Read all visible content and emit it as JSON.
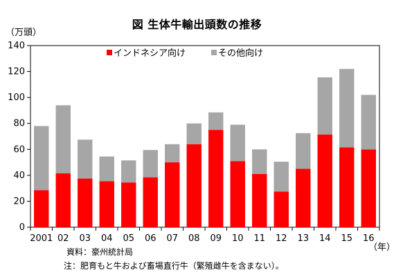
{
  "chart_data": {
    "type": "bar",
    "stacked": true,
    "title": "図 生体牛輸出頭数の推移",
    "y_unit_label": "（万頭）",
    "x_unit_label": "（年）",
    "categories": [
      "2001",
      "02",
      "03",
      "04",
      "05",
      "06",
      "07",
      "08",
      "09",
      "10",
      "11",
      "12",
      "13",
      "14",
      "15",
      "16"
    ],
    "series": [
      {
        "name": "インドネシア向け",
        "color": "#ff0000",
        "values": [
          28.5,
          41.5,
          37.5,
          35.5,
          34.5,
          38.5,
          50,
          64,
          75,
          51,
          41,
          27.5,
          45,
          71.5,
          61.5,
          60
        ]
      },
      {
        "name": "その他向け",
        "color": "#a6a6a6",
        "values": [
          49.5,
          52.5,
          30,
          19,
          17,
          21,
          14,
          16,
          13.5,
          28,
          19,
          23,
          27.5,
          44,
          60.5,
          42
        ]
      }
    ],
    "ylim": [
      0,
      140
    ],
    "yticks": [
      0,
      20,
      40,
      60,
      80,
      100,
      120,
      140
    ],
    "grid": false,
    "legend_position": "top-center",
    "source_note": "資料：豪州統計局",
    "footnote": "注：肥育もと牛および畜場直行牛（繁殖雌牛を含まない）。"
  }
}
